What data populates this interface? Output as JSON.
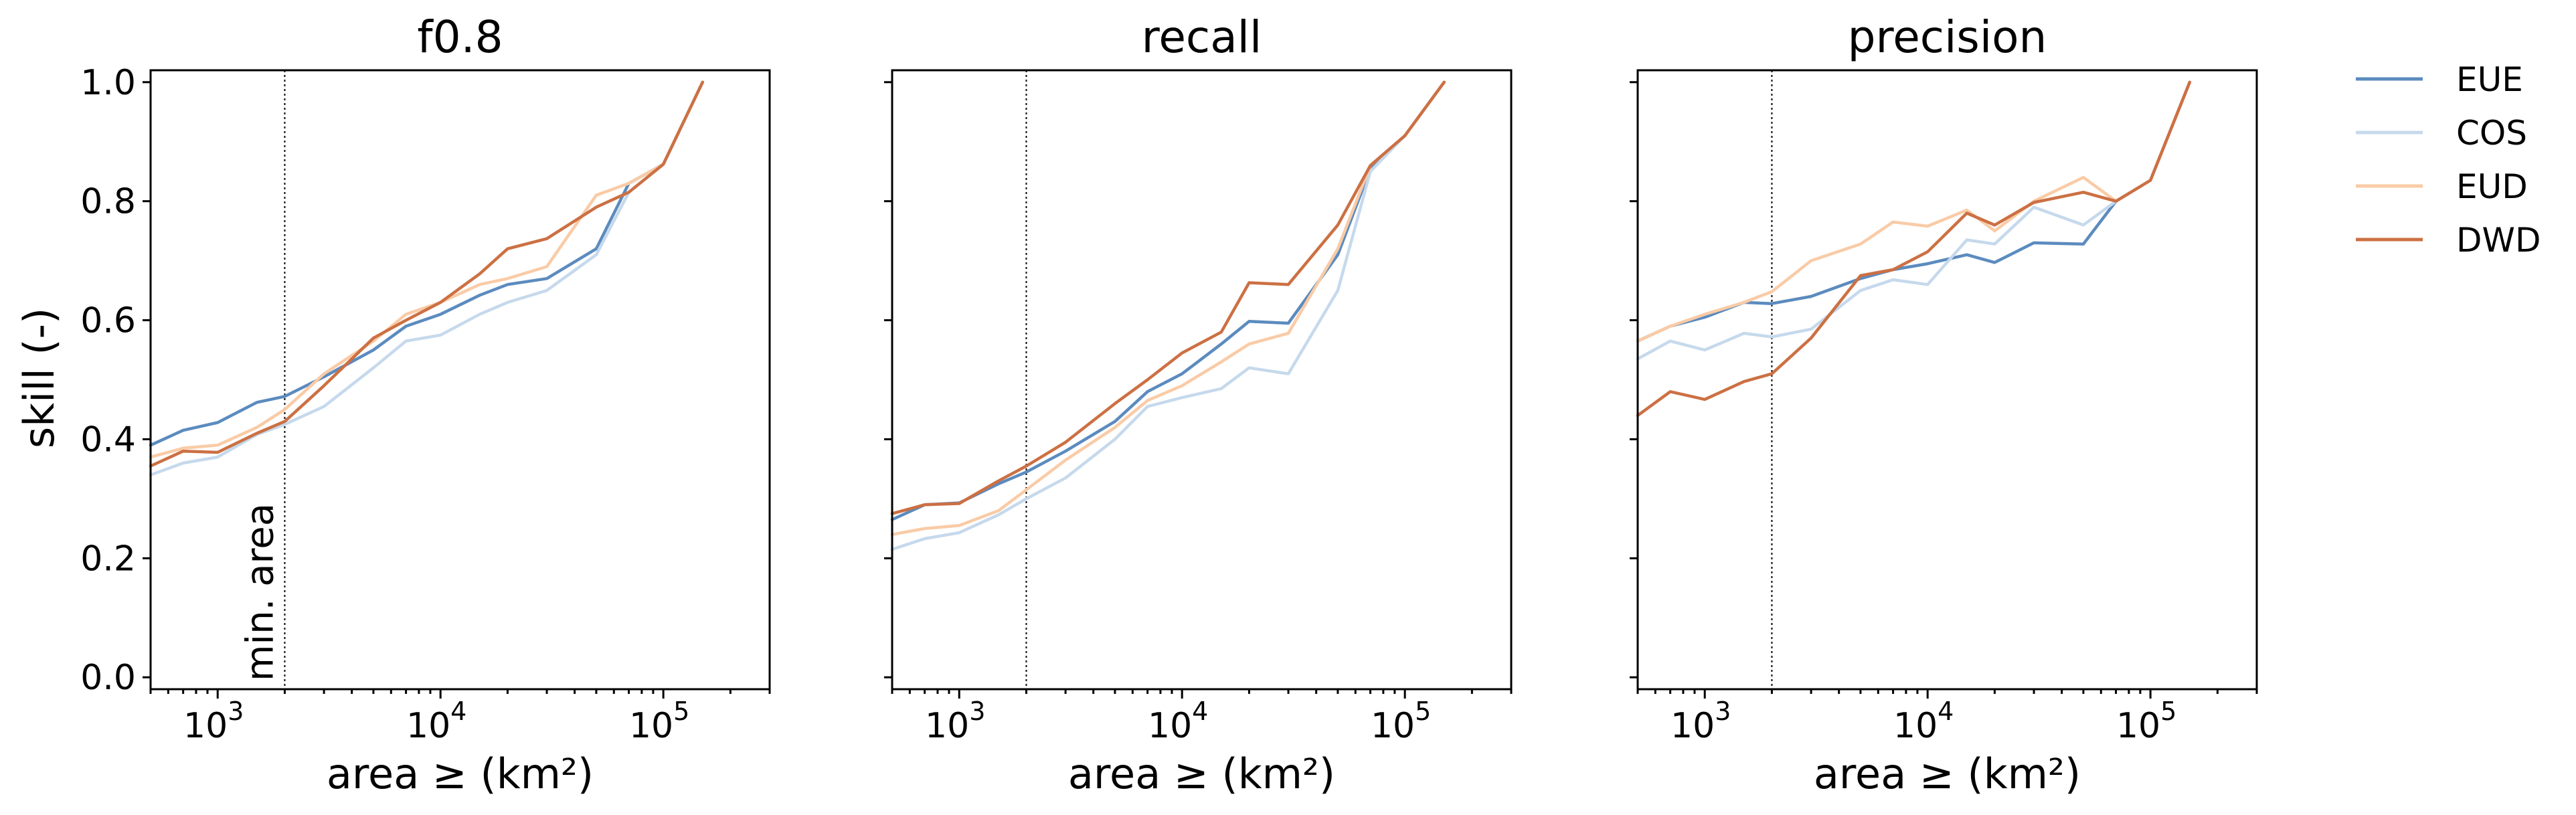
{
  "figure": {
    "ylabel": "skill (-)",
    "xlabel": "area ≥ (km²)",
    "annotation": "min. area",
    "min_area_km2": 2000,
    "legend": [
      {
        "name": "EUE",
        "color": "#5b8bbf"
      },
      {
        "name": "COS",
        "color": "#c6d9ec"
      },
      {
        "name": "EUD",
        "color": "#f9cba6"
      },
      {
        "name": "DWD",
        "color": "#cc7043"
      }
    ],
    "x_tick_base": "10",
    "x_tick_exponents": [
      "3",
      "4",
      "5"
    ],
    "y_tick_labels": [
      "0.0",
      "0.2",
      "0.4",
      "0.6",
      "0.8",
      "1.0"
    ]
  },
  "chart_data": [
    {
      "type": "line",
      "title": "f0.8",
      "xlabel": "area ≥ (km²)",
      "ylabel": "skill (-)",
      "xscale": "log",
      "xlim": [
        500,
        300000
      ],
      "ylim": [
        -0.02,
        1.02
      ],
      "x": [
        500,
        700,
        1000,
        1500,
        2000,
        3000,
        5000,
        7000,
        10000,
        15000,
        20000,
        30000,
        50000,
        70000,
        100000,
        150000
      ],
      "series": [
        {
          "name": "EUE",
          "values": [
            0.39,
            0.415,
            0.428,
            0.462,
            0.472,
            0.505,
            0.55,
            0.59,
            0.61,
            0.642,
            0.66,
            0.67,
            0.72,
            0.83,
            0.862,
            1.0
          ]
        },
        {
          "name": "COS",
          "values": [
            0.34,
            0.36,
            0.37,
            0.408,
            0.425,
            0.455,
            0.52,
            0.565,
            0.575,
            0.61,
            0.63,
            0.65,
            0.71,
            0.815,
            0.862,
            1.0
          ]
        },
        {
          "name": "EUD",
          "values": [
            0.37,
            0.385,
            0.39,
            0.42,
            0.45,
            0.51,
            0.565,
            0.61,
            0.63,
            0.66,
            0.67,
            0.69,
            0.81,
            0.83,
            0.862,
            1.0
          ]
        },
        {
          "name": "DWD",
          "values": [
            0.355,
            0.38,
            0.378,
            0.41,
            0.43,
            0.49,
            0.57,
            0.6,
            0.63,
            0.678,
            0.72,
            0.737,
            0.79,
            0.815,
            0.862,
            1.0
          ]
        }
      ]
    },
    {
      "type": "line",
      "title": "recall",
      "xlabel": "area ≥ (km²)",
      "ylabel": "",
      "xscale": "log",
      "xlim": [
        500,
        300000
      ],
      "ylim": [
        -0.02,
        1.02
      ],
      "x": [
        500,
        700,
        1000,
        1500,
        2000,
        3000,
        5000,
        7000,
        10000,
        15000,
        20000,
        30000,
        50000,
        70000,
        100000,
        150000
      ],
      "series": [
        {
          "name": "EUE",
          "values": [
            0.265,
            0.29,
            0.293,
            0.325,
            0.345,
            0.38,
            0.43,
            0.48,
            0.51,
            0.56,
            0.598,
            0.595,
            0.71,
            0.855,
            0.91,
            1.0
          ]
        },
        {
          "name": "COS",
          "values": [
            0.215,
            0.233,
            0.243,
            0.273,
            0.3,
            0.335,
            0.4,
            0.455,
            0.47,
            0.485,
            0.52,
            0.51,
            0.65,
            0.85,
            0.91,
            1.0
          ]
        },
        {
          "name": "EUD",
          "values": [
            0.24,
            0.25,
            0.255,
            0.28,
            0.315,
            0.365,
            0.42,
            0.465,
            0.49,
            0.53,
            0.56,
            0.578,
            0.72,
            0.86,
            0.91,
            1.0
          ]
        },
        {
          "name": "DWD",
          "values": [
            0.275,
            0.29,
            0.292,
            0.33,
            0.355,
            0.395,
            0.46,
            0.5,
            0.545,
            0.58,
            0.663,
            0.66,
            0.76,
            0.86,
            0.91,
            1.0
          ]
        }
      ]
    },
    {
      "type": "line",
      "title": "precision",
      "xlabel": "area ≥ (km²)",
      "ylabel": "",
      "xscale": "log",
      "xlim": [
        500,
        300000
      ],
      "ylim": [
        -0.02,
        1.02
      ],
      "x": [
        500,
        700,
        1000,
        1500,
        2000,
        3000,
        5000,
        7000,
        10000,
        15000,
        20000,
        30000,
        50000,
        70000,
        100000,
        150000
      ],
      "series": [
        {
          "name": "EUE",
          "values": [
            0.565,
            0.59,
            0.605,
            0.63,
            0.628,
            0.64,
            0.67,
            0.685,
            0.695,
            0.71,
            0.697,
            0.73,
            0.728,
            0.8,
            0.835,
            1.0
          ]
        },
        {
          "name": "COS",
          "values": [
            0.535,
            0.565,
            0.55,
            0.578,
            0.572,
            0.585,
            0.65,
            0.668,
            0.66,
            0.735,
            0.728,
            0.79,
            0.76,
            0.8,
            0.835,
            1.0
          ]
        },
        {
          "name": "EUD",
          "values": [
            0.565,
            0.59,
            0.61,
            0.63,
            0.648,
            0.7,
            0.728,
            0.765,
            0.758,
            0.785,
            0.75,
            0.8,
            0.84,
            0.8,
            0.835,
            1.0
          ]
        },
        {
          "name": "DWD",
          "values": [
            0.44,
            0.48,
            0.467,
            0.497,
            0.51,
            0.57,
            0.675,
            0.685,
            0.715,
            0.78,
            0.76,
            0.798,
            0.815,
            0.8,
            0.835,
            1.0
          ]
        }
      ]
    }
  ]
}
